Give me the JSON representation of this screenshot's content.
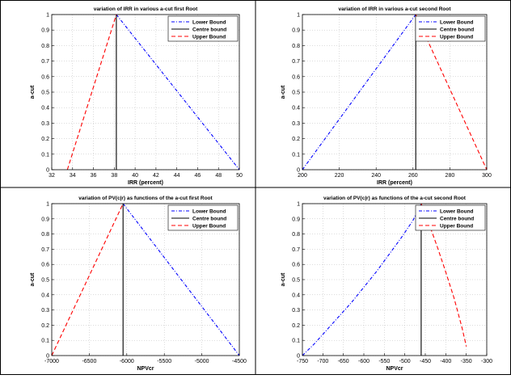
{
  "chart_data": [
    {
      "type": "line",
      "title": "variation of IRR in various a-cut first Root",
      "xlabel": "IRR (percent)",
      "ylabel": "a-cut",
      "xlim": [
        32,
        50
      ],
      "ylim": [
        0,
        1
      ],
      "xticks": [
        "32",
        "34",
        "36",
        "38",
        "40",
        "42",
        "44",
        "46",
        "48",
        "50"
      ],
      "yticks": [
        "0",
        "0.1",
        "0.2",
        "0.3",
        "0.4",
        "0.5",
        "0.6",
        "0.7",
        "0.8",
        "0.9",
        "1"
      ],
      "grid": true,
      "legend_position": "top-right",
      "series": [
        {
          "name": "Lower Bound",
          "color": "#0000ff",
          "style": "dashdot",
          "x": [
            38.2,
            50
          ],
          "y": [
            1,
            0
          ]
        },
        {
          "name": "Centre bound",
          "color": "#000000",
          "style": "solid",
          "x": [
            38.2,
            38.2
          ],
          "y": [
            0,
            1
          ]
        },
        {
          "name": "Upper Bound",
          "color": "#ff0000",
          "style": "dashed",
          "x": [
            33.5,
            38.2
          ],
          "y": [
            0,
            1
          ]
        }
      ]
    },
    {
      "type": "line",
      "title": "variation of IRR in various a-cut second Root",
      "xlabel": "IRR (percent)",
      "ylabel": "a-cut",
      "xlim": [
        200,
        300
      ],
      "ylim": [
        0,
        1
      ],
      "xticks": [
        "200",
        "220",
        "240",
        "260",
        "280",
        "300"
      ],
      "yticks": [
        "0",
        "0.1",
        "0.2",
        "0.3",
        "0.4",
        "0.5",
        "0.6",
        "0.7",
        "0.8",
        "0.9",
        "1"
      ],
      "grid": true,
      "legend_position": "top-right",
      "series": [
        {
          "name": "Lower Bound",
          "color": "#0000ff",
          "style": "dashdot",
          "x": [
            200,
            261.5
          ],
          "y": [
            0,
            1
          ]
        },
        {
          "name": "Centre bound",
          "color": "#000000",
          "style": "solid",
          "x": [
            261.5,
            261.5
          ],
          "y": [
            0,
            1
          ]
        },
        {
          "name": "Upper Bound",
          "color": "#ff0000",
          "style": "dashed",
          "x": [
            261.5,
            300
          ],
          "y": [
            1,
            0
          ]
        }
      ]
    },
    {
      "type": "line",
      "title": "variation of PV(c|r) as functions of the a-cut first Root",
      "xlabel": "NPVcr",
      "ylabel": "a-cut",
      "xlim": [
        -7000,
        -4500
      ],
      "ylim": [
        0,
        1
      ],
      "xticks": [
        "-7000",
        "-6500",
        "-6000",
        "-5500",
        "-5000",
        "-4500"
      ],
      "yticks": [
        "0",
        "0.1",
        "0.2",
        "0.3",
        "0.4",
        "0.5",
        "0.6",
        "0.7",
        "0.8",
        "0.9",
        "1"
      ],
      "grid": true,
      "legend_position": "top-right",
      "series": [
        {
          "name": "Lower Bound",
          "color": "#0000ff",
          "style": "dashdot",
          "x": [
            -6050,
            -4500
          ],
          "y": [
            1,
            0
          ]
        },
        {
          "name": "Centre bound",
          "color": "#000000",
          "style": "solid",
          "x": [
            -6050,
            -6050
          ],
          "y": [
            0,
            1
          ]
        },
        {
          "name": "Upper Bound",
          "color": "#ff0000",
          "style": "dashed",
          "x": [
            -7000,
            -6050
          ],
          "y": [
            0,
            1
          ]
        }
      ]
    },
    {
      "type": "line",
      "title": "variation of PV(c|r) as functions of the a-cut second Root",
      "xlabel": "NPVcr",
      "ylabel": "a-cut",
      "xlim": [
        -750,
        -300
      ],
      "ylim": [
        0,
        1
      ],
      "xticks": [
        "-750",
        "-700",
        "-650",
        "-600",
        "-550",
        "-500",
        "-450",
        "-400",
        "-350",
        "-300"
      ],
      "yticks": [
        "0",
        "0.1",
        "0.2",
        "0.3",
        "0.4",
        "0.5",
        "0.6",
        "0.7",
        "0.8",
        "0.9",
        "1"
      ],
      "grid": true,
      "legend_position": "top-right",
      "series": [
        {
          "name": "Lower Bound",
          "color": "#0000ff",
          "style": "dashdot",
          "x": [
            -750,
            -720,
            -690,
            -660,
            -630,
            -600,
            -570,
            -540,
            -510,
            -480,
            -460
          ],
          "y": [
            0,
            0.08,
            0.17,
            0.26,
            0.35,
            0.45,
            0.55,
            0.66,
            0.77,
            0.89,
            1
          ]
        },
        {
          "name": "Centre bound",
          "color": "#000000",
          "style": "solid",
          "x": [
            -460,
            -460
          ],
          "y": [
            0,
            1
          ]
        },
        {
          "name": "Upper Bound",
          "color": "#ff0000",
          "style": "dashed",
          "x": [
            -460,
            -440,
            -420,
            -400,
            -380,
            -360,
            -350
          ],
          "y": [
            1,
            0.86,
            0.71,
            0.55,
            0.38,
            0.18,
            0.06
          ]
        }
      ]
    }
  ]
}
